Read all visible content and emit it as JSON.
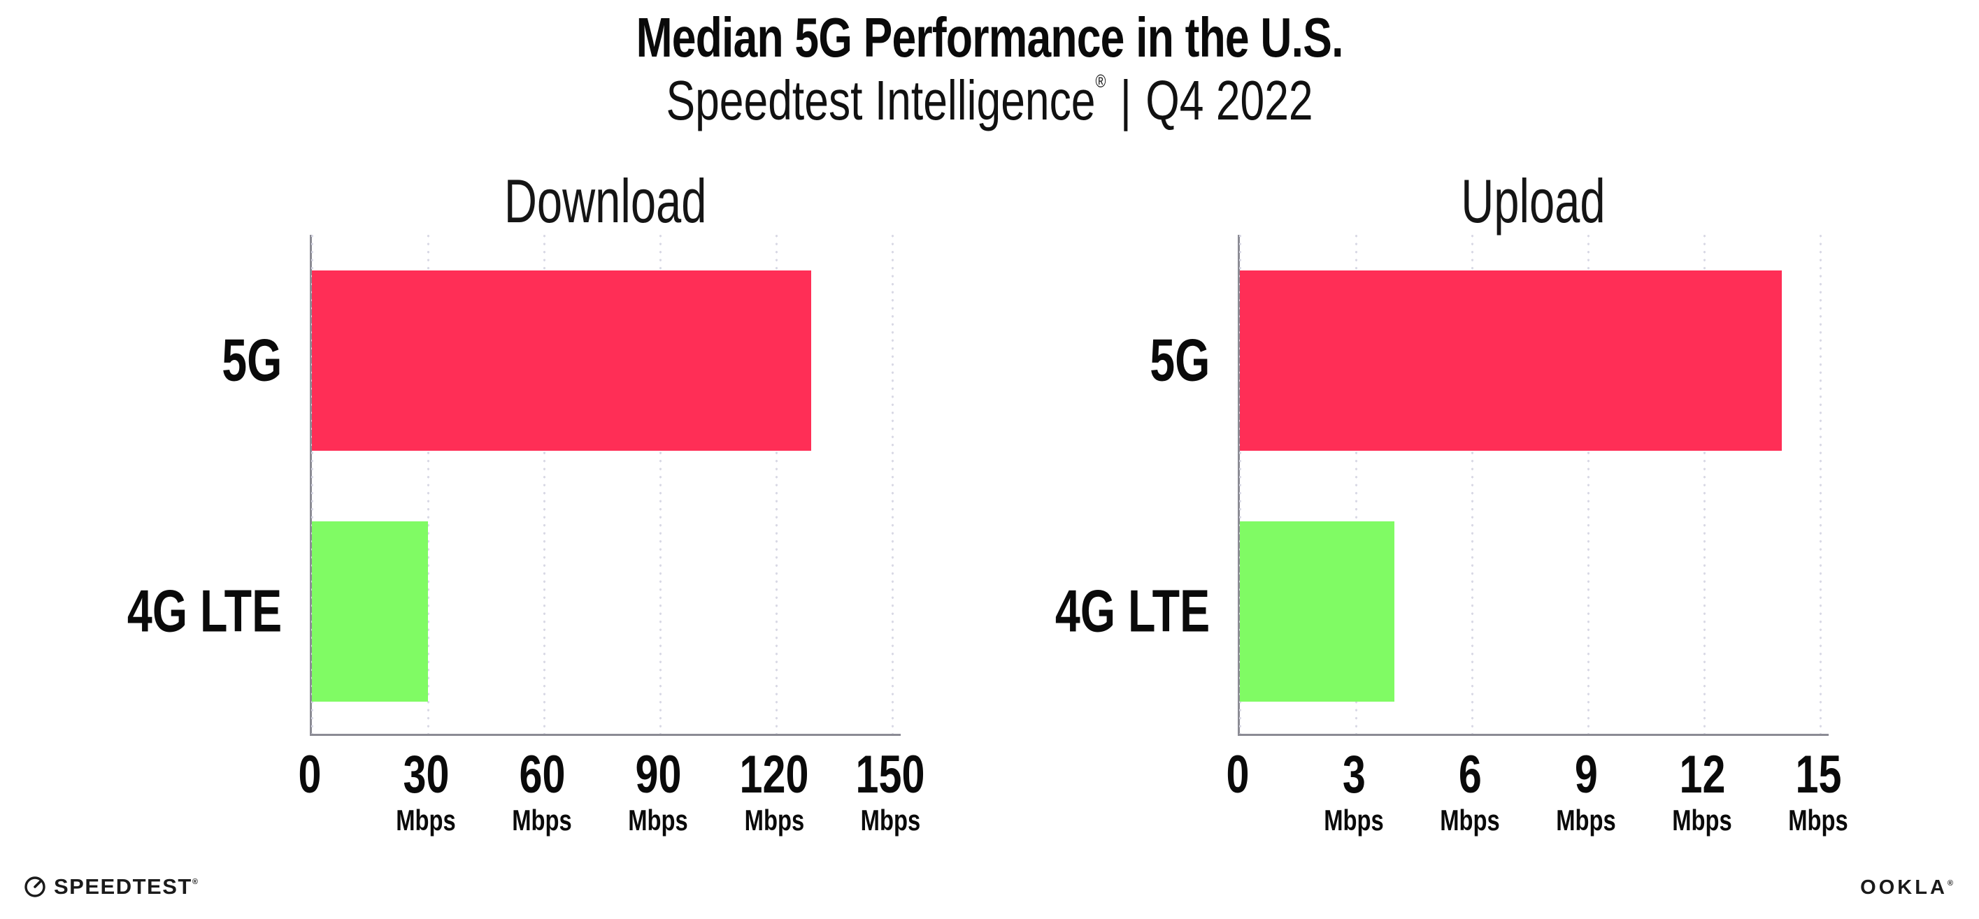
{
  "header": {
    "title": "Median 5G Performance in the U.S.",
    "subtitle": {
      "product": "Speedtest Intelligence",
      "trademark": "®",
      "separator": "|",
      "period": "Q4 2022"
    }
  },
  "charts": [
    {
      "title": "Download",
      "bars": [
        {
          "label": "5G"
        },
        {
          "label": "4G LTE"
        }
      ],
      "ticks": [
        {
          "value": "0",
          "unit": ""
        },
        {
          "value": "30",
          "unit": "Mbps"
        },
        {
          "value": "60",
          "unit": "Mbps"
        },
        {
          "value": "90",
          "unit": "Mbps"
        },
        {
          "value": "120",
          "unit": "Mbps"
        },
        {
          "value": "150",
          "unit": "Mbps"
        }
      ]
    },
    {
      "title": "Upload",
      "bars": [
        {
          "label": "5G"
        },
        {
          "label": "4G LTE"
        }
      ],
      "ticks": [
        {
          "value": "0",
          "unit": ""
        },
        {
          "value": "3",
          "unit": "Mbps"
        },
        {
          "value": "6",
          "unit": "Mbps"
        },
        {
          "value": "9",
          "unit": "Mbps"
        },
        {
          "value": "12",
          "unit": "Mbps"
        },
        {
          "value": "15",
          "unit": "Mbps"
        }
      ]
    }
  ],
  "footer": {
    "speedtest_wordmark": "SPEEDTEST",
    "speedtest_trademark": "®",
    "ookla_wordmark": "OOKLA",
    "ookla_trademark": "®"
  },
  "colors": {
    "bar_5g": "#FF2E56",
    "bar_4g_lte": "#80FB64",
    "axis": "#8B8B94",
    "gridline": "#D9D9E5",
    "text": "#0A0A0A"
  },
  "chart_data": [
    {
      "type": "bar",
      "orientation": "horizontal",
      "title": "Download",
      "categories": [
        "5G",
        "4G LTE"
      ],
      "values": [
        129,
        30
      ],
      "unit": "Mbps",
      "xlim": [
        0,
        150
      ],
      "xticks": [
        0,
        30,
        60,
        90,
        120,
        150
      ],
      "colors": [
        "#FF2E56",
        "#80FB64"
      ],
      "grid": "vertical-dotted",
      "legend": null
    },
    {
      "type": "bar",
      "orientation": "horizontal",
      "title": "Upload",
      "categories": [
        "5G",
        "4G LTE"
      ],
      "values": [
        14,
        4
      ],
      "unit": "Mbps",
      "xlim": [
        0,
        15
      ],
      "xticks": [
        0,
        3,
        6,
        9,
        12,
        15
      ],
      "colors": [
        "#FF2E56",
        "#80FB64"
      ],
      "grid": "vertical-dotted",
      "legend": null
    }
  ]
}
